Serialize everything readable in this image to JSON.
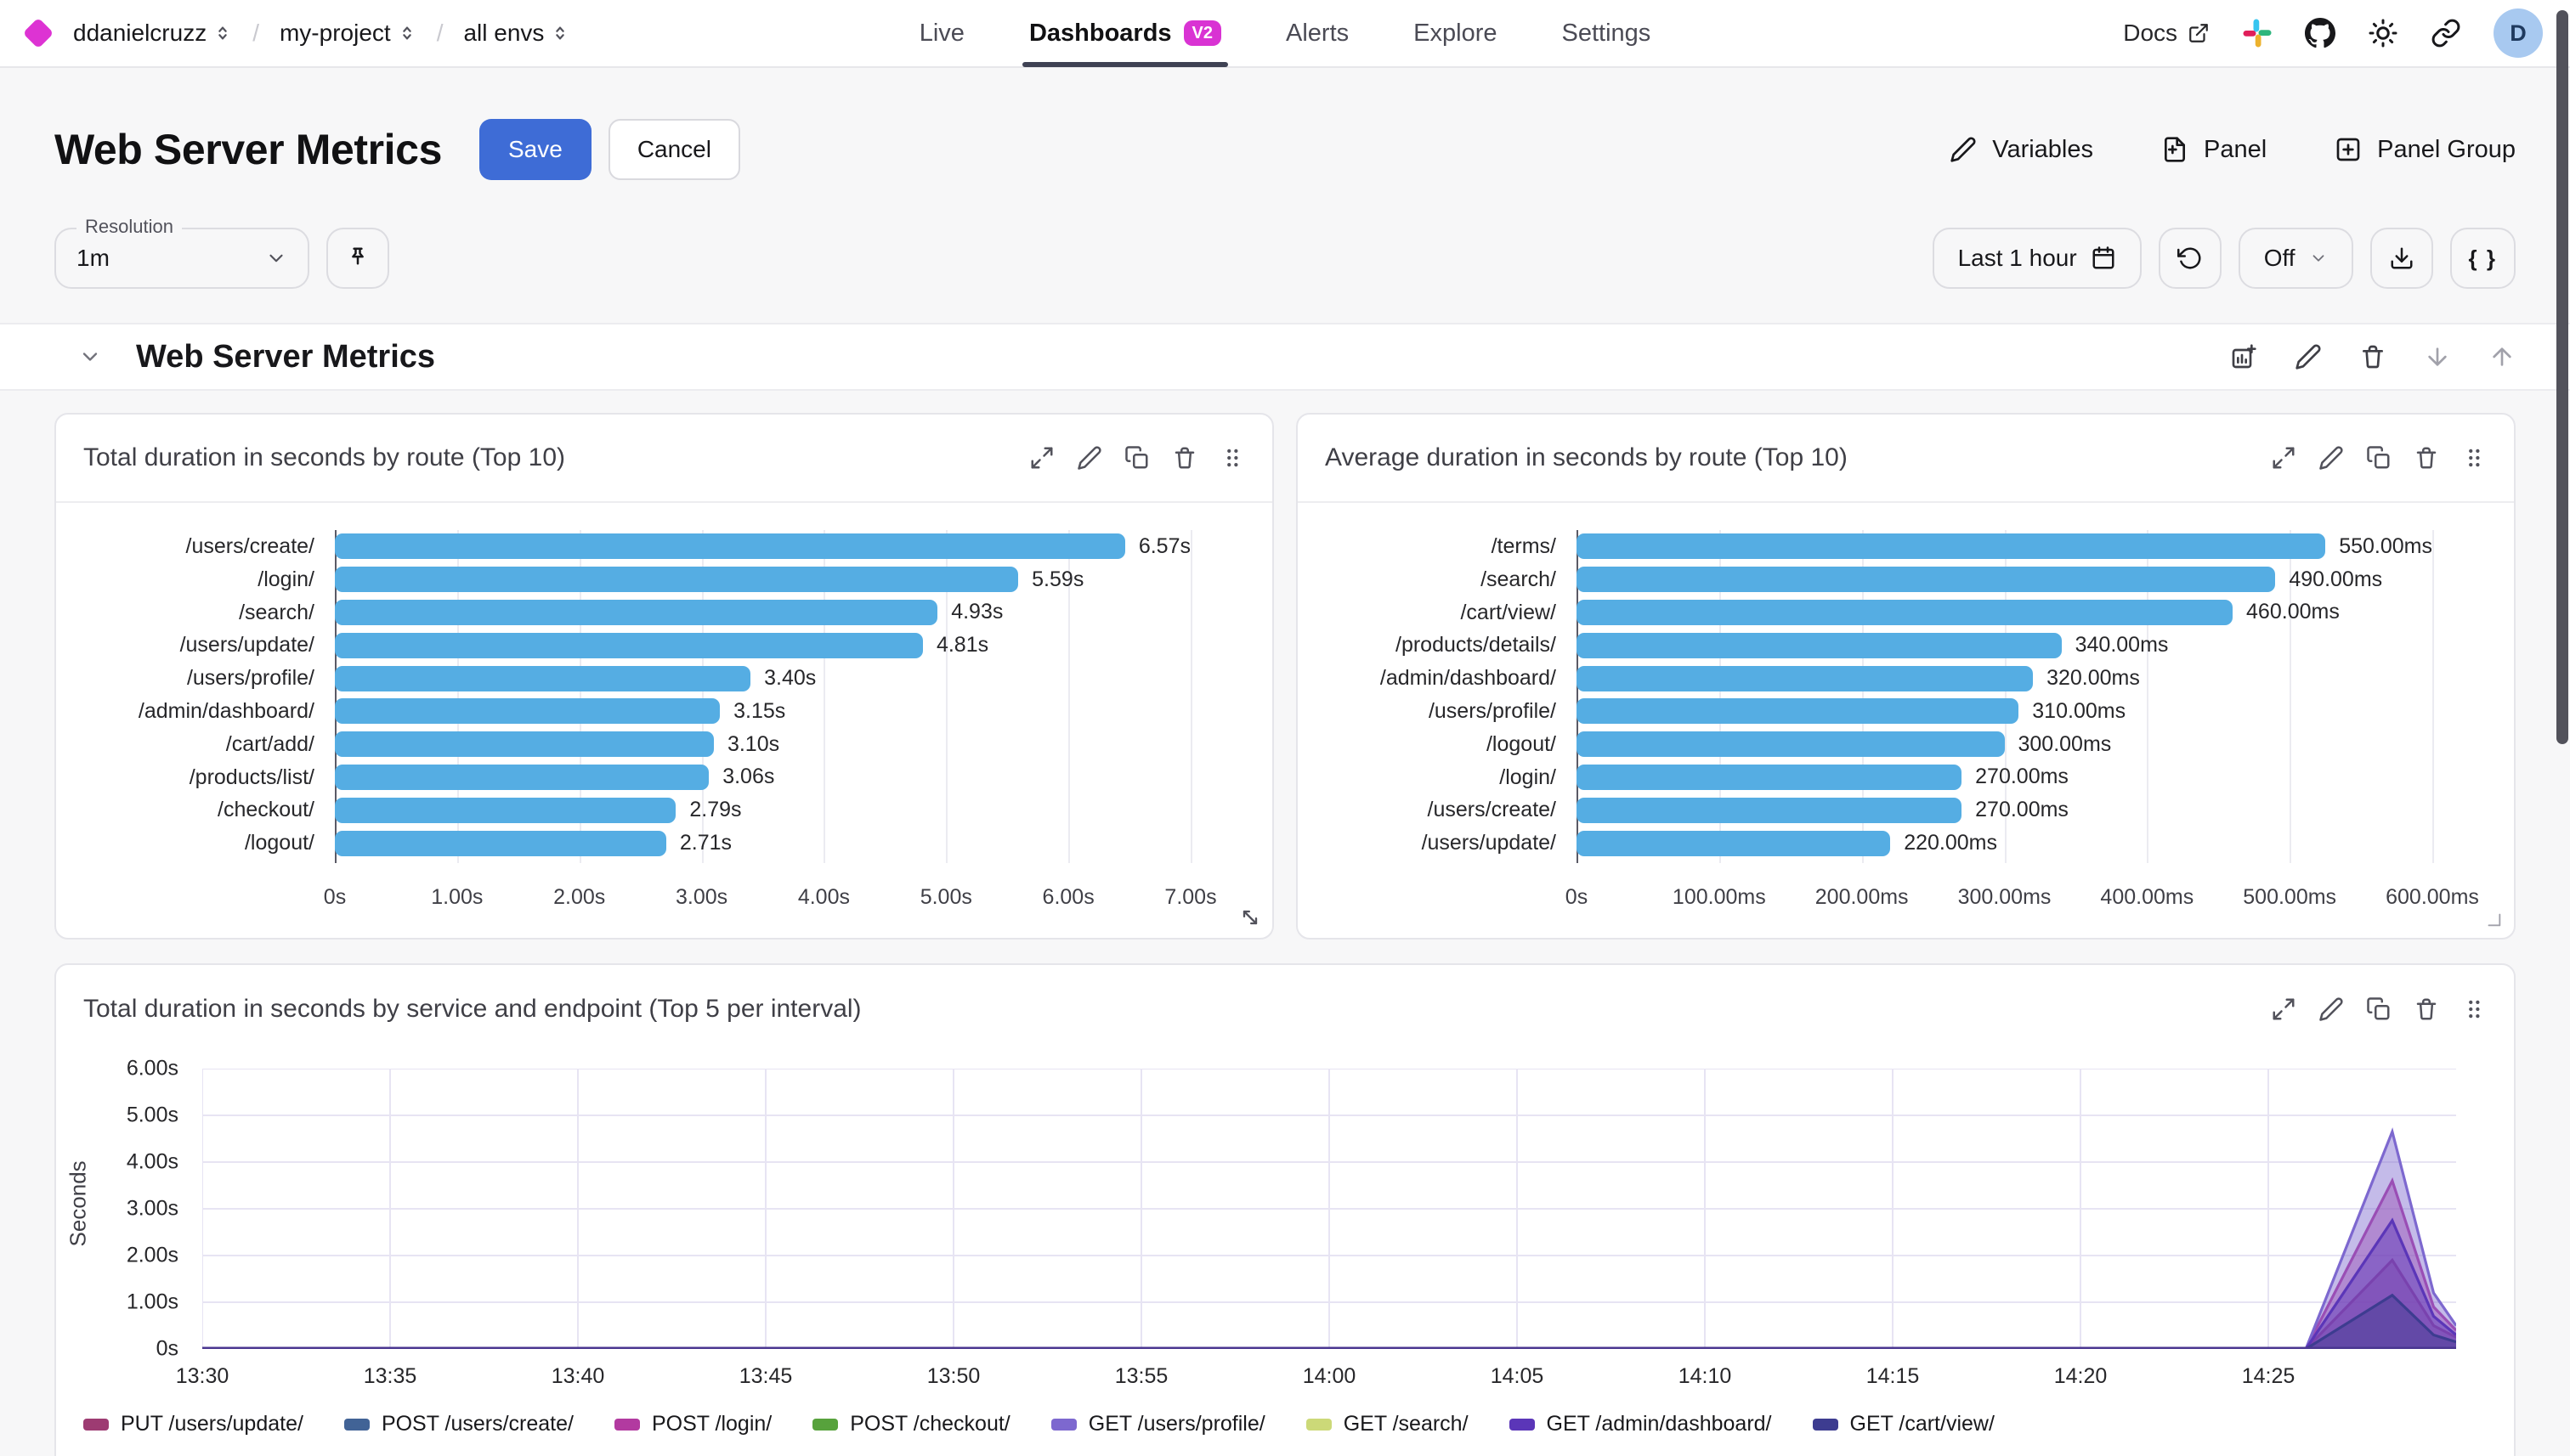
{
  "nav": {
    "breadcrumbs": [
      {
        "label": "ddanielcruzz"
      },
      {
        "label": "my-project"
      },
      {
        "label": "all envs"
      }
    ],
    "tabs": [
      {
        "label": "Live",
        "active": false
      },
      {
        "label": "Dashboards",
        "active": true,
        "badge": "V2"
      },
      {
        "label": "Alerts",
        "active": false
      },
      {
        "label": "Explore",
        "active": false
      },
      {
        "label": "Settings",
        "active": false
      }
    ],
    "docs_label": "Docs",
    "avatar_initial": "D"
  },
  "toolbar": {
    "title": "Web Server Metrics",
    "save_label": "Save",
    "cancel_label": "Cancel",
    "variables_label": "Variables",
    "panel_label": "Panel",
    "panel_group_label": "Panel Group"
  },
  "controls": {
    "resolution_label": "Resolution",
    "resolution_value": "1m",
    "time_range": "Last 1 hour",
    "refresh_value": "Off",
    "braces_label": "{ }"
  },
  "section": {
    "title": "Web Server Metrics"
  },
  "colors": {
    "accent_blue": "#3e6cd6",
    "brand_magenta": "#d933d3",
    "bar_blue": "#55ade3",
    "baseline_purple": "#4a3690"
  },
  "chart_data": [
    {
      "type": "bar",
      "orientation": "horizontal",
      "title": "Total duration in seconds by route (Top 10)",
      "categories": [
        "/users/create/",
        "/login/",
        "/search/",
        "/users/update/",
        "/users/profile/",
        "/admin/dashboard/",
        "/cart/add/",
        "/products/list/",
        "/checkout/",
        "/logout/"
      ],
      "values": [
        6.57,
        5.59,
        4.93,
        4.81,
        3.4,
        3.15,
        3.1,
        3.06,
        2.79,
        2.71
      ],
      "value_labels": [
        "6.57s",
        "5.59s",
        "4.93s",
        "4.81s",
        "3.40s",
        "3.15s",
        "3.10s",
        "3.06s",
        "2.79s",
        "2.71s"
      ],
      "x_ticks": [
        "0s",
        "1.00s",
        "2.00s",
        "3.00s",
        "4.00s",
        "5.00s",
        "6.00s",
        "7.00s"
      ],
      "x_max": 7,
      "bar_color": "#55ade3",
      "grid": true
    },
    {
      "type": "bar",
      "orientation": "horizontal",
      "title": "Average duration in seconds by route (Top 10)",
      "categories": [
        "/terms/",
        "/search/",
        "/cart/view/",
        "/products/details/",
        "/admin/dashboard/",
        "/users/profile/",
        "/logout/",
        "/login/",
        "/users/create/",
        "/users/update/"
      ],
      "values": [
        550,
        490,
        460,
        340,
        320,
        310,
        300,
        270,
        270,
        220
      ],
      "value_labels": [
        "550.00ms",
        "490.00ms",
        "460.00ms",
        "340.00ms",
        "320.00ms",
        "310.00ms",
        "300.00ms",
        "270.00ms",
        "270.00ms",
        "220.00ms"
      ],
      "x_ticks": [
        "0s",
        "100.00ms",
        "200.00ms",
        "300.00ms",
        "400.00ms",
        "500.00ms",
        "600.00ms"
      ],
      "x_max": 600,
      "bar_color": "#55ade3",
      "grid": true
    },
    {
      "type": "area",
      "title": "Total duration in seconds by service and endpoint (Top 5 per interval)",
      "ylabel": "Seconds",
      "y_ticks": [
        "0s",
        "1.00s",
        "2.00s",
        "3.00s",
        "4.00s",
        "5.00s",
        "6.00s"
      ],
      "y_max": 6,
      "x_ticks": [
        "13:30",
        "13:35",
        "13:40",
        "13:45",
        "13:50",
        "13:55",
        "14:00",
        "14:05",
        "14:10",
        "14:15",
        "14:20",
        "14:25"
      ],
      "x_tick_minutes": [
        0,
        5,
        10,
        15,
        20,
        25,
        30,
        35,
        40,
        45,
        50,
        55
      ],
      "x_domain_minutes": [
        0,
        60
      ],
      "grid": true,
      "legend_position": "bottom",
      "series": [
        {
          "name": "PUT /users/update/",
          "color": "#9d3b72",
          "points": [
            [
              0,
              0
            ],
            [
              56,
              0
            ],
            [
              58.3,
              1.9
            ],
            [
              59.4,
              0.5
            ],
            [
              60,
              0.25
            ]
          ]
        },
        {
          "name": "POST /users/create/",
          "color": "#416396",
          "points": [
            [
              0,
              0
            ],
            [
              60,
              0
            ]
          ]
        },
        {
          "name": "POST /login/",
          "color": "#b23aa0",
          "points": [
            [
              0,
              0
            ],
            [
              56,
              0
            ],
            [
              58.3,
              3.6
            ],
            [
              59.4,
              0.9
            ],
            [
              60,
              0.4
            ]
          ]
        },
        {
          "name": "POST /checkout/",
          "color": "#57a23c",
          "points": [
            [
              0,
              0
            ],
            [
              60,
              0
            ]
          ]
        },
        {
          "name": "GET /users/profile/",
          "color": "#7d68cf",
          "points": [
            [
              0,
              0
            ],
            [
              56,
              0
            ],
            [
              58.3,
              4.65
            ],
            [
              59.4,
              1.2
            ],
            [
              60,
              0.5
            ]
          ]
        },
        {
          "name": "GET /search/",
          "color": "#ccd978",
          "points": [
            [
              0,
              0
            ],
            [
              60,
              0
            ]
          ]
        },
        {
          "name": "GET /admin/dashboard/",
          "color": "#5b36b8",
          "points": [
            [
              0,
              0
            ],
            [
              56,
              0
            ],
            [
              58.3,
              2.75
            ],
            [
              59.4,
              0.7
            ],
            [
              60,
              0.3
            ]
          ]
        },
        {
          "name": "GET /cart/view/",
          "color": "#3d3c90",
          "points": [
            [
              0,
              0
            ],
            [
              56,
              0
            ],
            [
              58.3,
              1.15
            ],
            [
              59.4,
              0.3
            ],
            [
              60,
              0.15
            ]
          ]
        }
      ]
    }
  ]
}
